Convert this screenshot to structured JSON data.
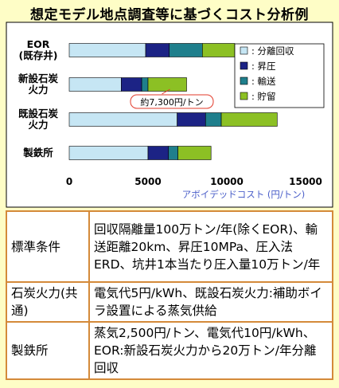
{
  "title": "想定モデル地点調査等に基づくコスト分析例",
  "chart_data": {
    "type": "bar",
    "orientation": "horizontal",
    "stacked": true,
    "categories": [
      "EOR\n(既存井)",
      "新設石炭\n火力",
      "既設石炭\n火力",
      "製鉄所"
    ],
    "series": [
      {
        "name": "分離回収",
        "color": "#c6e6f4",
        "values": [
          4850,
          3300,
          6850,
          5000
        ]
      },
      {
        "name": "昇圧",
        "color": "#1c2385",
        "values": [
          1500,
          1300,
          1800,
          1300
        ]
      },
      {
        "name": "輸送",
        "color": "#1f7f8c",
        "values": [
          2100,
          400,
          1000,
          600
        ]
      },
      {
        "name": "貯留",
        "color": "#8cc024",
        "values": [
          2050,
          2450,
          3550,
          2100
        ]
      }
    ],
    "xlabel": "アボイデッドコスト (円/トン)",
    "ylabel": "",
    "xlim": [
      0,
      15000
    ],
    "xticks": [
      "0",
      "5000",
      "10000",
      "15000"
    ],
    "grid": false,
    "legend_position": "right",
    "annotation": {
      "text": "約7,300円/トン",
      "category_index": 1,
      "value": 7300
    }
  },
  "conditions": [
    {
      "label": "標準条件",
      "value": "回収隔離量100万トン/年(除くEOR)、輸送距離20km、昇圧10MPa、圧入法ERD、坑井1本当たり圧入量10万トン/年"
    },
    {
      "label": "石炭火力(共通)",
      "value": "電気代5円/kWh、既設石炭火力:補助ボイラ設置による蒸気供給"
    },
    {
      "label": "製鉄所",
      "value": "蒸気2,500円/トン、電気代10円/kWh、EOR:新設石炭火力から20万トン/年分離回収"
    }
  ]
}
